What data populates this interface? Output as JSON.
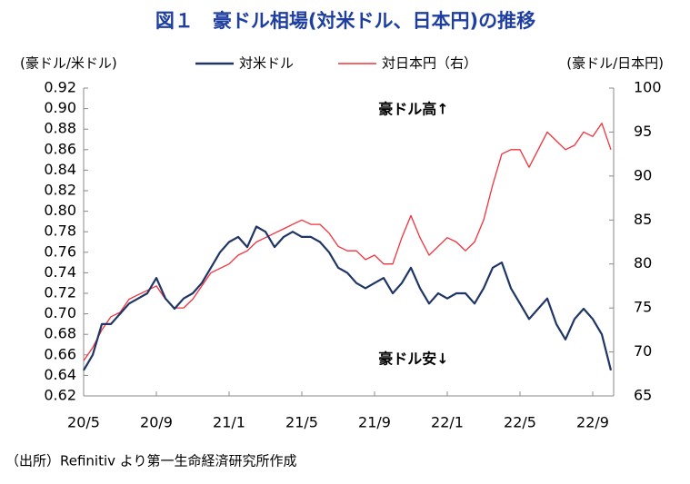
{
  "chart_data": {
    "type": "line",
    "title": "図１　豪ドル相場(対米ドル、日本円)の推移",
    "y_label": "(豪ドル/米ドル)",
    "y2_label": "(豪ドル/日本円)",
    "annotations": [
      "豪ドル高↑",
      "豪ドル安↓"
    ],
    "source": "（出所）Refinitiv より第一生命経済研究所作成",
    "categories": [
      "20/5",
      null,
      null,
      null,
      null,
      null,
      null,
      null,
      "20/9",
      null,
      null,
      null,
      null,
      null,
      null,
      null,
      "21/1",
      null,
      null,
      null,
      null,
      null,
      null,
      null,
      "21/5",
      null,
      null,
      null,
      null,
      null,
      null,
      null,
      "21/9",
      null,
      null,
      null,
      null,
      null,
      null,
      null,
      "22/1",
      null,
      null,
      null,
      null,
      null,
      null,
      null,
      "22/5",
      null,
      null,
      null,
      null,
      null,
      null,
      null,
      "22/9",
      null,
      null
    ],
    "series": [
      {
        "name": "対米ドル",
        "color": "#1f3566",
        "values": [
          0.645,
          0.66,
          0.69,
          0.69,
          0.7,
          0.71,
          0.715,
          0.72,
          0.735,
          0.715,
          0.705,
          0.715,
          0.72,
          0.73,
          0.745,
          0.76,
          0.77,
          0.775,
          0.765,
          0.785,
          0.78,
          0.765,
          0.775,
          0.78,
          0.775,
          0.775,
          0.77,
          0.76,
          0.745,
          0.74,
          0.73,
          0.725,
          0.73,
          0.735,
          0.72,
          0.73,
          0.745,
          0.725,
          0.71,
          0.72,
          0.715,
          0.72,
          0.72,
          0.71,
          0.725,
          0.745,
          0.75,
          0.725,
          0.71,
          0.695,
          0.705,
          0.715,
          0.69,
          0.675,
          0.695,
          0.705,
          0.695,
          0.68,
          0.645
        ]
      },
      {
        "name": "対日本円（右）",
        "color": "#f0323c",
        "axis": "y2",
        "values": [
          69,
          70.5,
          72.5,
          74,
          74.5,
          76,
          76.5,
          77,
          77.5,
          76,
          75,
          75,
          76,
          77.5,
          79,
          79.5,
          80,
          81,
          81.5,
          82.5,
          83,
          83.5,
          84,
          84.5,
          85,
          84.5,
          84.5,
          83.5,
          82,
          81.5,
          81.5,
          80.5,
          81,
          80,
          80,
          83,
          85.5,
          83,
          81,
          82,
          83,
          82.5,
          81.5,
          82.5,
          85,
          89,
          92.5,
          93,
          93,
          91,
          93,
          95,
          94,
          93,
          93.5,
          95,
          94.5,
          96,
          93
        ]
      }
    ],
    "ylim": [
      0.62,
      0.92
    ],
    "yticks": [
      0.62,
      0.64,
      0.66,
      0.68,
      {
        "value": 0.7,
        "label": "0.70"
      },
      0.72,
      0.74,
      0.76,
      0.78,
      {
        "value": 0.8,
        "label": "0.80"
      },
      0.82,
      0.84,
      0.86,
      0.88,
      {
        "value": 0.9,
        "label": "0.90"
      },
      0.92
    ],
    "y2lim": [
      65,
      100
    ],
    "y2ticks": [
      65,
      70,
      75,
      80,
      85,
      90,
      95,
      100
    ],
    "legend": "top"
  }
}
